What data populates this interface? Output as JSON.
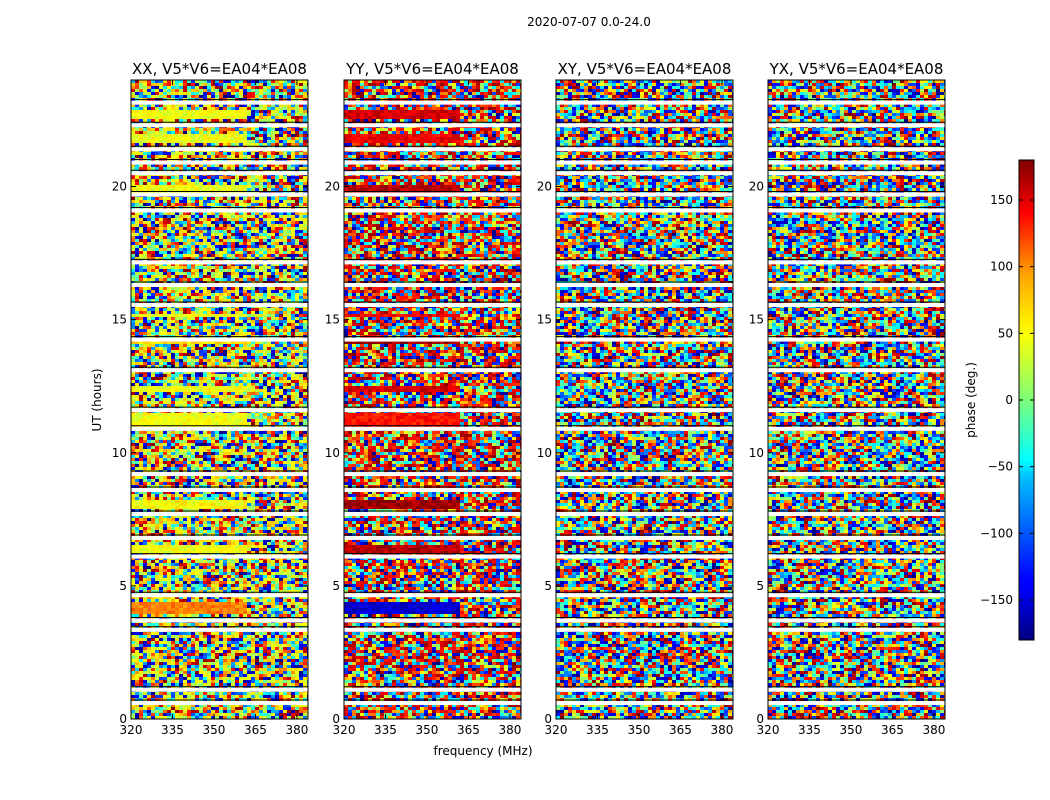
{
  "figure_title": "2020-07-07 0.0-24.0",
  "chart_data": {
    "type": "heatmap",
    "title": "2020-07-07 0.0-24.0",
    "xlabel": "frequency (MHz)",
    "ylabel": "UT (hours)",
    "xlim": [
      320,
      384
    ],
    "ylim": [
      0,
      24
    ],
    "xticks": [
      320,
      335,
      350,
      365,
      380
    ],
    "yticks": [
      0,
      5,
      10,
      15,
      20
    ],
    "panels": [
      {
        "title": "XX, V5*V6=EA04*EA08",
        "pol": "XX",
        "bias_phase": 40,
        "coherent_bands": [
          [
            4.0,
            4.5,
            90
          ],
          [
            6.2,
            6.6,
            40
          ],
          [
            7.9,
            8.3,
            45
          ],
          [
            11.0,
            11.5,
            40
          ],
          [
            12.3,
            12.6,
            40
          ],
          [
            14.1,
            14.3,
            55
          ],
          [
            15.1,
            15.3,
            40
          ],
          [
            19.8,
            20.1,
            40
          ],
          [
            21.7,
            22.0,
            40
          ],
          [
            22.6,
            22.9,
            40
          ]
        ]
      },
      {
        "title": "YY, V5*V6=EA04*EA08",
        "pol": "YY",
        "bias_phase": 140,
        "coherent_bands": [
          [
            4.0,
            4.5,
            -150
          ],
          [
            6.2,
            6.6,
            160
          ],
          [
            7.9,
            8.3,
            170
          ],
          [
            11.0,
            11.5,
            130
          ],
          [
            12.3,
            12.6,
            150
          ],
          [
            14.1,
            14.3,
            170
          ],
          [
            15.1,
            15.3,
            140
          ],
          [
            19.8,
            20.1,
            160
          ],
          [
            21.7,
            22.0,
            140
          ],
          [
            22.6,
            22.9,
            150
          ]
        ]
      },
      {
        "title": "XY, V5*V6=EA04*EA08",
        "pol": "XY",
        "bias_phase": null,
        "coherent_bands": []
      },
      {
        "title": "YX, V5*V6=EA04*EA08",
        "pol": "YX",
        "bias_phase": null,
        "coherent_bands": []
      }
    ],
    "flagged_rows_ut": [
      0.6,
      1.1,
      3.35,
      3.7,
      4.65,
      6.1,
      6.8,
      7.7,
      8.6,
      9.2,
      10.9,
      11.6,
      13.1,
      14.25,
      15.55,
      16.3,
      17.15,
      19.1,
      19.7,
      20.5,
      20.9,
      21.4,
      22.3,
      23.15
    ],
    "colorbar": {
      "label": "phase (deg.)",
      "range": [
        -180,
        180
      ],
      "ticks": [
        150,
        100,
        50,
        0,
        -50,
        -100,
        -150
      ],
      "tick_labels": [
        "150",
        "100",
        "50",
        "0",
        "−50",
        "−100",
        "−150"
      ],
      "colormap": "jet"
    }
  }
}
